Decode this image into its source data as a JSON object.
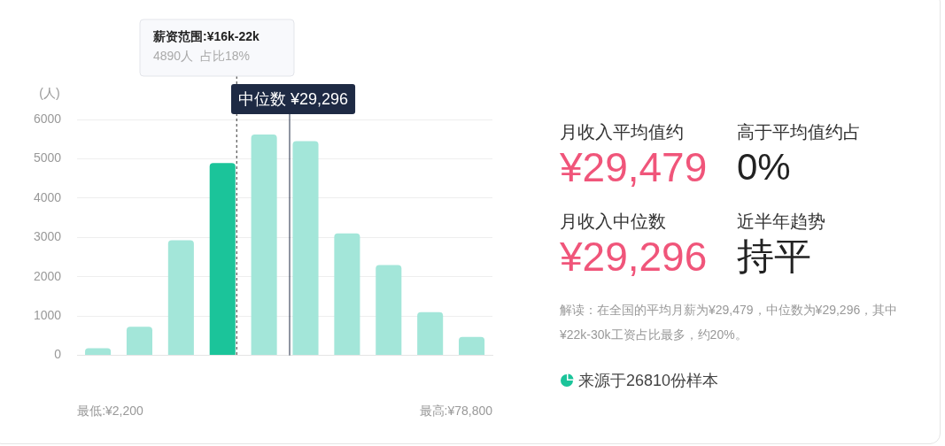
{
  "chart_data": [
    {
      "type": "bar",
      "ylabel": "(人)",
      "categories": [
        null,
        null,
        null,
        null,
        null,
        null,
        null,
        null,
        null,
        null
      ],
      "values": [
        180,
        730,
        2930,
        4890,
        5620,
        5450,
        3100,
        2300,
        1100,
        470
      ],
      "colors": [
        "#a3e6d9",
        "#a3e6d9",
        "#a3e6d9",
        "#1bc49a",
        "#a3e6d9",
        "#a3e6d9",
        "#a3e6d9",
        "#a3e6d9",
        "#a3e6d9",
        "#a3e6d9"
      ],
      "ylim": [
        0,
        6000
      ],
      "yticks": [
        0,
        1000,
        2000,
        3000,
        4000,
        5000,
        6000
      ],
      "grid": "y",
      "legend": false,
      "annotations": [
        "最低:¥2,200",
        "最高:¥78,800",
        "薪资范围:¥16k-22k",
        "4890人  占比18%",
        "中位数 ¥29,296"
      ]
    },
    {
      "type": "other",
      "annotations": [
        "月收入平均值约",
        "¥29,479",
        "高于平均值约占",
        "0%",
        "月收入中位数",
        "¥29,296",
        "近半年趋势",
        "持平",
        "解读：在全国的平均月薪为¥29,479，中位数为¥29,296，其中¥22k-30k工资占比最多，约20%。",
        "来源于26810份样本"
      ]
    }
  ]
}
